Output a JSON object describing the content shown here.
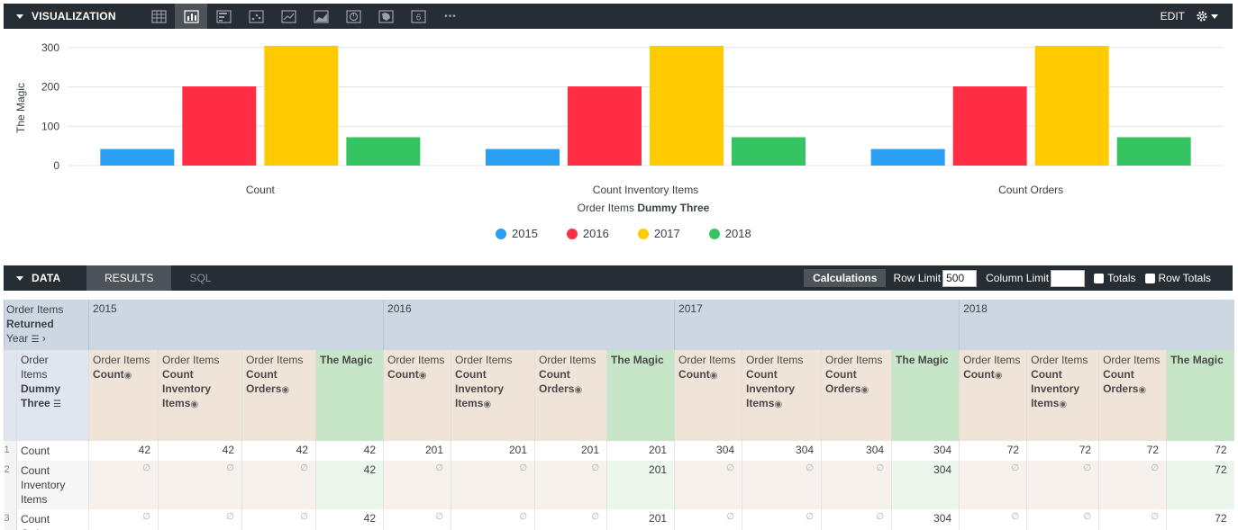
{
  "visualization": {
    "title": "VISUALIZATION",
    "edit_label": "EDIT",
    "icons": [
      "table-icon",
      "column-chart-icon",
      "bar-chart-icon",
      "scatter-icon",
      "line-chart-icon",
      "area-chart-icon",
      "pie-chart-icon",
      "map-icon",
      "single-value-icon",
      "more-icon"
    ],
    "single_value_glyph": "6",
    "more_glyph": "•••"
  },
  "chart_data": {
    "type": "bar",
    "ylabel": "The Magic",
    "xlabel_prefix": "Order Items",
    "xlabel_bold": "Dummy Three",
    "categories": [
      "Count",
      "Count Inventory Items",
      "Count Orders"
    ],
    "ylim": [
      0,
      304
    ],
    "yticks": [
      0,
      100,
      200,
      300
    ],
    "series": [
      {
        "name": "2015",
        "color": "#2a9ff4",
        "values": [
          42,
          42,
          42
        ]
      },
      {
        "name": "2016",
        "color": "#ff2e44",
        "values": [
          201,
          201,
          201
        ]
      },
      {
        "name": "2017",
        "color": "#ffca00",
        "values": [
          304,
          304,
          304
        ]
      },
      {
        "name": "2018",
        "color": "#36c462",
        "values": [
          72,
          72,
          72
        ]
      }
    ],
    "legend_position": "bottom",
    "grid": true
  },
  "data": {
    "title": "DATA",
    "tabs": [
      "RESULTS",
      "SQL"
    ],
    "calculations_label": "Calculations",
    "row_limit_label": "Row Limit",
    "row_limit_value": "500",
    "column_limit_label": "Column Limit",
    "column_limit_value": "",
    "totals_label": "Totals",
    "row_totals_label": "Row Totals"
  },
  "table": {
    "pivot_label_1": "Order Items",
    "pivot_label_2": "Returned",
    "pivot_label_3": "Year",
    "years": [
      "2015",
      "2016",
      "2017",
      "2018"
    ],
    "dim_header_1": "Order",
    "dim_header_2": "Items",
    "dim_header_3": "Dummy",
    "dim_header_4": "Three",
    "measure_headers": [
      {
        "view": "Order Items",
        "field": "Count"
      },
      {
        "view": "Order Items",
        "field": "Count Inventory Items"
      },
      {
        "view": "Order Items",
        "field": "Count Orders"
      },
      {
        "view": "",
        "field": "The Magic"
      }
    ],
    "null_glyph": "∅",
    "rows": [
      {
        "num": "1",
        "label": "Count",
        "values": [
          [
            "42",
            "42",
            "42",
            "42"
          ],
          [
            "201",
            "201",
            "201",
            "201"
          ],
          [
            "304",
            "304",
            "304",
            "304"
          ],
          [
            "72",
            "72",
            "72",
            "72"
          ]
        ]
      },
      {
        "num": "2",
        "label": "Count Inventory Items",
        "values": [
          [
            "∅",
            "∅",
            "∅",
            "42"
          ],
          [
            "∅",
            "∅",
            "∅",
            "201"
          ],
          [
            "∅",
            "∅",
            "∅",
            "304"
          ],
          [
            "∅",
            "∅",
            "∅",
            "72"
          ]
        ]
      },
      {
        "num": "3",
        "label": "Count Orders",
        "values": [
          [
            "∅",
            "∅",
            "∅",
            "42"
          ],
          [
            "∅",
            "∅",
            "∅",
            "201"
          ],
          [
            "∅",
            "∅",
            "∅",
            "304"
          ],
          [
            "∅",
            "∅",
            "∅",
            "72"
          ]
        ]
      }
    ]
  }
}
